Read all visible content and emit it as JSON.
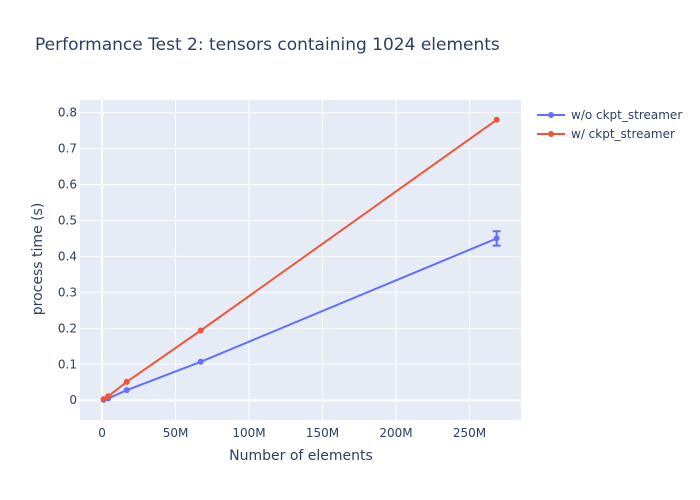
{
  "chart_data": {
    "type": "line",
    "title": "Performance Test 2: tensors containing 1024 elements",
    "xlabel": "Number of elements",
    "ylabel": "process time (s)",
    "xlim": [
      -15000000,
      285000000
    ],
    "ylim": [
      -0.055,
      0.835
    ],
    "x_ticks": [
      0,
      50000000,
      100000000,
      150000000,
      200000000,
      250000000
    ],
    "x_tick_labels": [
      "0",
      "50M",
      "100M",
      "150M",
      "200M",
      "250M"
    ],
    "y_ticks": [
      0,
      0.1,
      0.2,
      0.3,
      0.4,
      0.5,
      0.6,
      0.7,
      0.8
    ],
    "y_tick_labels": [
      "0",
      "0.1",
      "0.2",
      "0.3",
      "0.4",
      "0.5",
      "0.6",
      "0.7",
      "0.8"
    ],
    "grid": true,
    "legend_position": "right",
    "series": [
      {
        "name": "w/o ckpt_streamer",
        "color": "#636efa",
        "x": [
          1048576,
          4194304,
          16777216,
          67108864,
          268435456
        ],
        "y": [
          0.001,
          0.005,
          0.028,
          0.107,
          0.45
        ],
        "error": [
          0,
          0,
          0,
          0,
          0.02
        ]
      },
      {
        "name": "w/ ckpt_streamer",
        "color": "#ef553b",
        "x": [
          1048576,
          4194304,
          16777216,
          67108864,
          268435456
        ],
        "y": [
          0.003,
          0.011,
          0.051,
          0.194,
          0.78
        ],
        "error": [
          0,
          0,
          0,
          0,
          0
        ]
      }
    ]
  }
}
